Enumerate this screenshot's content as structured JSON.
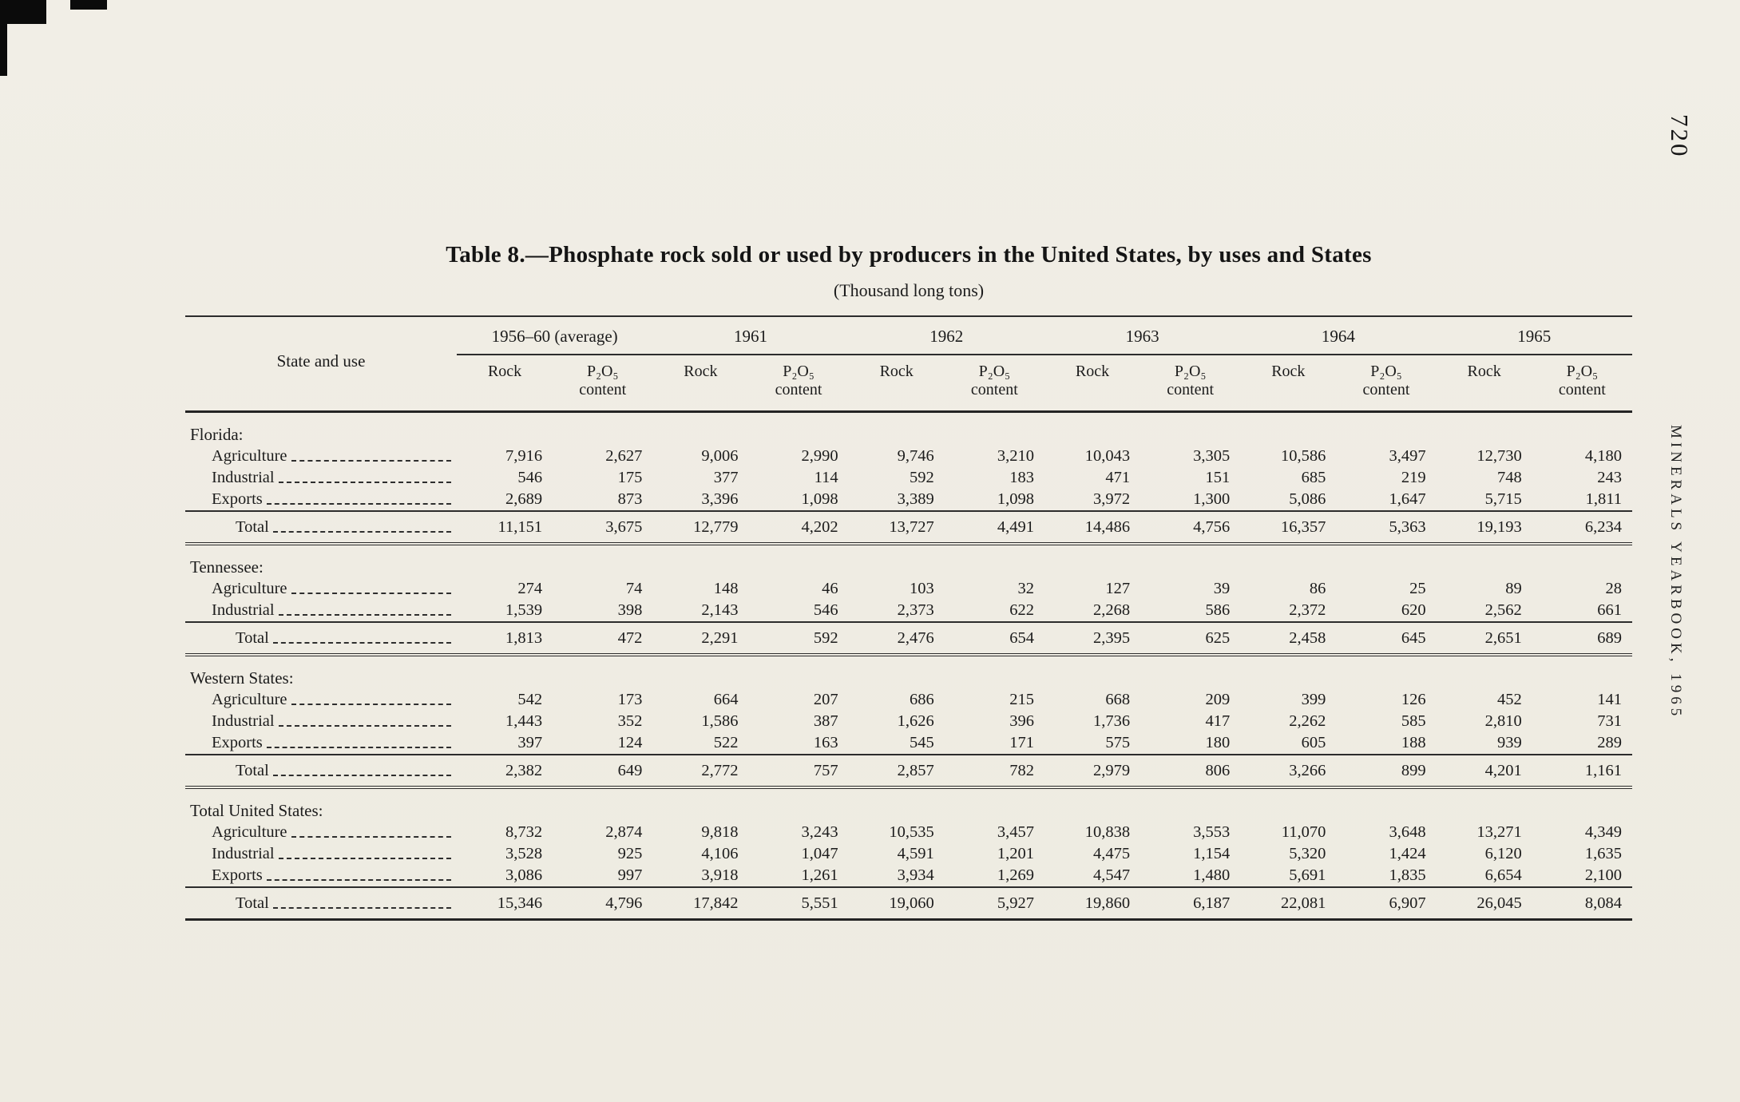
{
  "page": {
    "number": "720",
    "margin_label": "MINERALS YEARBOOK, 1965"
  },
  "table": {
    "title": "Table 8.—Phosphate rock sold or used by producers in the United States, by uses and States",
    "subtitle": "(Thousand long tons)",
    "stub_header": "State and use",
    "year_groups": [
      "1956–60 (average)",
      "1961",
      "1962",
      "1963",
      "1964",
      "1965"
    ],
    "sub_headers": [
      "Rock",
      "P₂O₅\ncontent"
    ],
    "groups": [
      {
        "name": "Florida:",
        "rows": [
          {
            "label": "Agriculture",
            "values": [
              "7,916",
              "2,627",
              "9,006",
              "2,990",
              "9,746",
              "3,210",
              "10,043",
              "3,305",
              "10,586",
              "3,497",
              "12,730",
              "4,180"
            ]
          },
          {
            "label": "Industrial",
            "values": [
              "546",
              "175",
              "377",
              "114",
              "592",
              "183",
              "471",
              "151",
              "685",
              "219",
              "748",
              "243"
            ]
          },
          {
            "label": "Exports",
            "values": [
              "2,689",
              "873",
              "3,396",
              "1,098",
              "3,389",
              "1,098",
              "3,972",
              "1,300",
              "5,086",
              "1,647",
              "5,715",
              "1,811"
            ]
          }
        ],
        "total": {
          "label": "Total",
          "values": [
            "11,151",
            "3,675",
            "12,779",
            "4,202",
            "13,727",
            "4,491",
            "14,486",
            "4,756",
            "16,357",
            "5,363",
            "19,193",
            "6,234"
          ]
        }
      },
      {
        "name": "Tennessee:",
        "rows": [
          {
            "label": "Agriculture",
            "values": [
              "274",
              "74",
              "148",
              "46",
              "103",
              "32",
              "127",
              "39",
              "86",
              "25",
              "89",
              "28"
            ]
          },
          {
            "label": "Industrial",
            "values": [
              "1,539",
              "398",
              "2,143",
              "546",
              "2,373",
              "622",
              "2,268",
              "586",
              "2,372",
              "620",
              "2,562",
              "661"
            ]
          }
        ],
        "total": {
          "label": "Total",
          "values": [
            "1,813",
            "472",
            "2,291",
            "592",
            "2,476",
            "654",
            "2,395",
            "625",
            "2,458",
            "645",
            "2,651",
            "689"
          ]
        }
      },
      {
        "name": "Western States:",
        "rows": [
          {
            "label": "Agriculture",
            "values": [
              "542",
              "173",
              "664",
              "207",
              "686",
              "215",
              "668",
              "209",
              "399",
              "126",
              "452",
              "141"
            ]
          },
          {
            "label": "Industrial",
            "values": [
              "1,443",
              "352",
              "1,586",
              "387",
              "1,626",
              "396",
              "1,736",
              "417",
              "2,262",
              "585",
              "2,810",
              "731"
            ]
          },
          {
            "label": "Exports",
            "values": [
              "397",
              "124",
              "522",
              "163",
              "545",
              "171",
              "575",
              "180",
              "605",
              "188",
              "939",
              "289"
            ]
          }
        ],
        "total": {
          "label": "Total",
          "values": [
            "2,382",
            "649",
            "2,772",
            "757",
            "2,857",
            "782",
            "2,979",
            "806",
            "3,266",
            "899",
            "4,201",
            "1,161"
          ]
        }
      },
      {
        "name": "Total United States:",
        "rows": [
          {
            "label": "Agriculture",
            "values": [
              "8,732",
              "2,874",
              "9,818",
              "3,243",
              "10,535",
              "3,457",
              "10,838",
              "3,553",
              "11,070",
              "3,648",
              "13,271",
              "4,349"
            ]
          },
          {
            "label": "Industrial",
            "values": [
              "3,528",
              "925",
              "4,106",
              "1,047",
              "4,591",
              "1,201",
              "4,475",
              "1,154",
              "5,320",
              "1,424",
              "6,120",
              "1,635"
            ]
          },
          {
            "label": "Exports",
            "values": [
              "3,086",
              "997",
              "3,918",
              "1,261",
              "3,934",
              "1,269",
              "4,547",
              "1,480",
              "5,691",
              "1,835",
              "6,654",
              "2,100"
            ]
          }
        ],
        "total": {
          "label": "Total",
          "values": [
            "15,346",
            "4,796",
            "17,842",
            "5,551",
            "19,060",
            "5,927",
            "19,860",
            "6,187",
            "22,081",
            "6,907",
            "26,045",
            "8,084"
          ]
        }
      }
    ]
  }
}
